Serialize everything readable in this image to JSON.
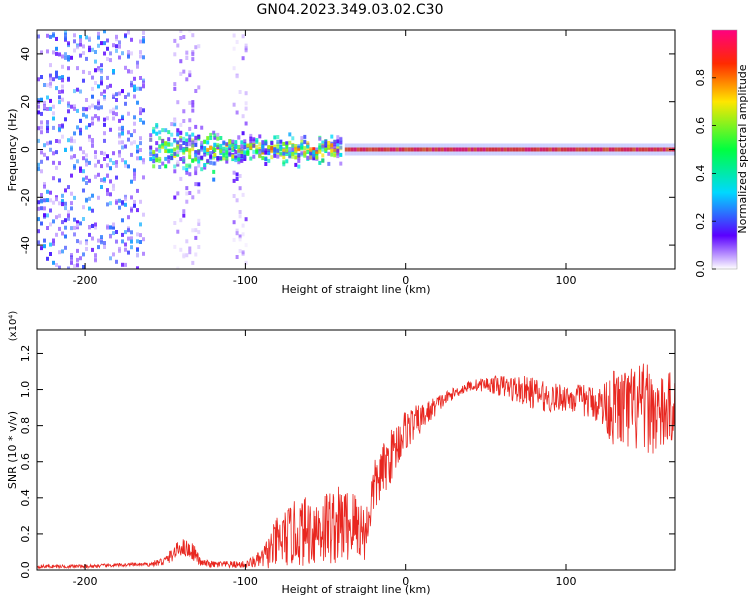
{
  "title": "GN04.2023.349.03.02.C30",
  "chart_data": [
    {
      "type": "heatmap",
      "xlabel": "Height of straight line (km)",
      "ylabel": "Frequency (Hz)",
      "xlim": [
        -230,
        168
      ],
      "ylim": [
        -50,
        50
      ],
      "xticks": [
        -200,
        -100,
        0,
        100
      ],
      "xtick_labels": [
        "-200",
        "-100",
        "0",
        "100"
      ],
      "yticks": [
        -40,
        -20,
        0,
        20,
        40
      ],
      "ytick_labels": [
        "-40",
        "-20",
        "0",
        "20",
        "40"
      ],
      "colorbar": {
        "label": "Normalized spectral amplitude",
        "range": [
          0,
          1
        ],
        "ticks": [
          0.0,
          0.2,
          0.4,
          0.6,
          0.8
        ],
        "tick_labels": [
          "0.0",
          "0.2",
          "0.4",
          "0.6",
          "0.8"
        ],
        "colors": [
          "#ffffff",
          "#5a00ff",
          "#00d8ff",
          "#00ff40",
          "#ffe600",
          "#ff2a00",
          "#ff0080"
        ]
      },
      "regions": [
        {
          "x": [
            -230,
            -163
          ],
          "freq_spread": 50,
          "amplitude": 0.25,
          "pattern": "broadband scatter"
        },
        {
          "x": [
            -160,
            -120
          ],
          "freq_spread": 15,
          "amplitude": 0.45,
          "pattern": "cluster near 0 Hz"
        },
        {
          "x": [
            -145,
            -130
          ],
          "freq_spread": 50,
          "amplitude": 0.12,
          "pattern": "vertical faint streak"
        },
        {
          "x": [
            -108,
            -100
          ],
          "freq_spread": 50,
          "amplitude": 0.12,
          "pattern": "vertical faint streak"
        },
        {
          "x": [
            -120,
            -40
          ],
          "freq_spread": 8,
          "amplitude": 0.5,
          "pattern": "band near 0 Hz"
        },
        {
          "x": [
            -38,
            168
          ],
          "freq_spread": 2,
          "amplitude": 0.95,
          "pattern": "narrow line at 0 Hz"
        }
      ],
      "grid": false,
      "legend": "colorbar-right"
    },
    {
      "type": "line",
      "xlabel": "Height of straight line (km)",
      "ylabel": "SNR (10 * v/v)",
      "y_multiplier": "(x10⁴)",
      "xlim": [
        -230,
        168
      ],
      "ylim": [
        0,
        1.33
      ],
      "xticks": [
        -200,
        -100,
        0,
        100
      ],
      "xtick_labels": [
        "-200",
        "-100",
        "0",
        "100"
      ],
      "yticks": [
        0.0,
        0.2,
        0.4,
        0.6,
        0.8,
        1.0,
        1.2
      ],
      "ytick_labels": [
        "0.0",
        "0.2",
        "0.4",
        "0.6",
        "0.8",
        "1.0",
        "1.2"
      ],
      "color": "#e8261f",
      "x": [
        -230,
        -200,
        -170,
        -160,
        -150,
        -140,
        -132,
        -128,
        -120,
        -100,
        -90,
        -80,
        -70,
        -60,
        -50,
        -40,
        -30,
        -25,
        -20,
        -10,
        0,
        10,
        20,
        30,
        40,
        50,
        60,
        70,
        80,
        90,
        100,
        110,
        120,
        130,
        140,
        150,
        160,
        168
      ],
      "y": [
        0.02,
        0.02,
        0.03,
        0.03,
        0.05,
        0.13,
        0.1,
        0.04,
        0.03,
        0.03,
        0.06,
        0.15,
        0.2,
        0.22,
        0.24,
        0.25,
        0.25,
        0.2,
        0.45,
        0.62,
        0.78,
        0.84,
        0.92,
        0.98,
        1.02,
        1.03,
        1.02,
        1.0,
        0.98,
        0.95,
        0.96,
        0.94,
        0.92,
        0.9,
        0.88,
        0.9,
        0.85,
        0.92
      ],
      "noise": [
        0.01,
        0.01,
        0.01,
        0.01,
        0.03,
        0.05,
        0.05,
        0.02,
        0.02,
        0.02,
        0.05,
        0.15,
        0.18,
        0.2,
        0.22,
        0.22,
        0.2,
        0.15,
        0.15,
        0.15,
        0.12,
        0.08,
        0.05,
        0.03,
        0.03,
        0.04,
        0.06,
        0.08,
        0.09,
        0.08,
        0.08,
        0.09,
        0.1,
        0.22,
        0.25,
        0.25,
        0.22,
        0.2
      ],
      "grid": false
    }
  ]
}
